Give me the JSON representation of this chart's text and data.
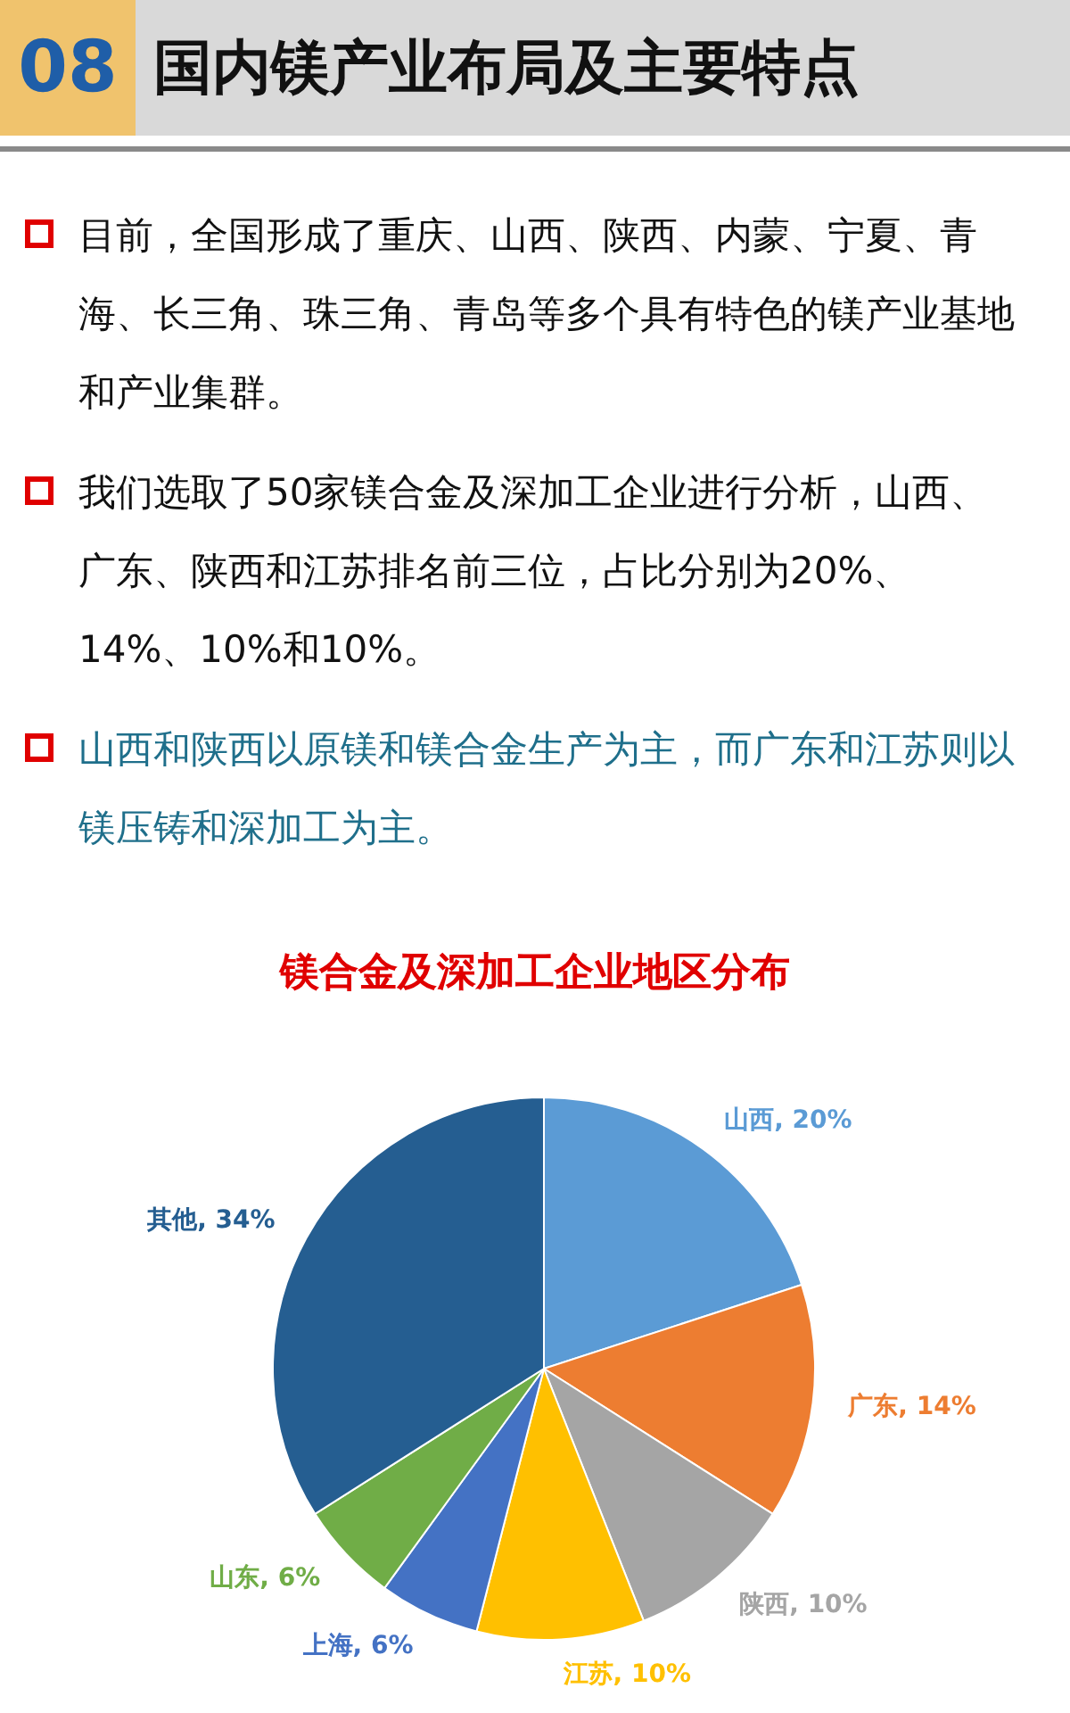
{
  "chart_data": {
    "type": "pie",
    "title": "镁合金及深加工企业地区分布",
    "annotations": [
      "08",
      "国内镁产业布局及主要特点",
      "目前，全国形成了重庆、山西、陕西、内蒙、宁夏、青海、长三角、珠三角、青岛等多个具有特色的镁产业基地和产业集群。",
      "我们选取了50家镁合金及深加工企业进行分析，山西、广东、陕西和江苏排名前三位，占比分别为20%、14%、10%和10%。",
      "山西和陕西以原镁和镁合金生产为主，而广东和江苏则以镁压铸和深加工为主。"
    ],
    "categories": [
      "山西",
      "广东",
      "陕西",
      "江苏",
      "上海",
      "山东",
      "其他"
    ],
    "values": [
      20,
      14,
      10,
      10,
      6,
      6,
      34
    ],
    "value_labels": [
      "20%",
      "14%",
      "10%",
      "10%",
      "6%",
      "6%",
      "34%"
    ],
    "colors": [
      "#5b9bd5",
      "#ed7d31",
      "#a5a5a5",
      "#ffc000",
      "#4472c4",
      "#70ad47",
      "#255e91"
    ]
  }
}
